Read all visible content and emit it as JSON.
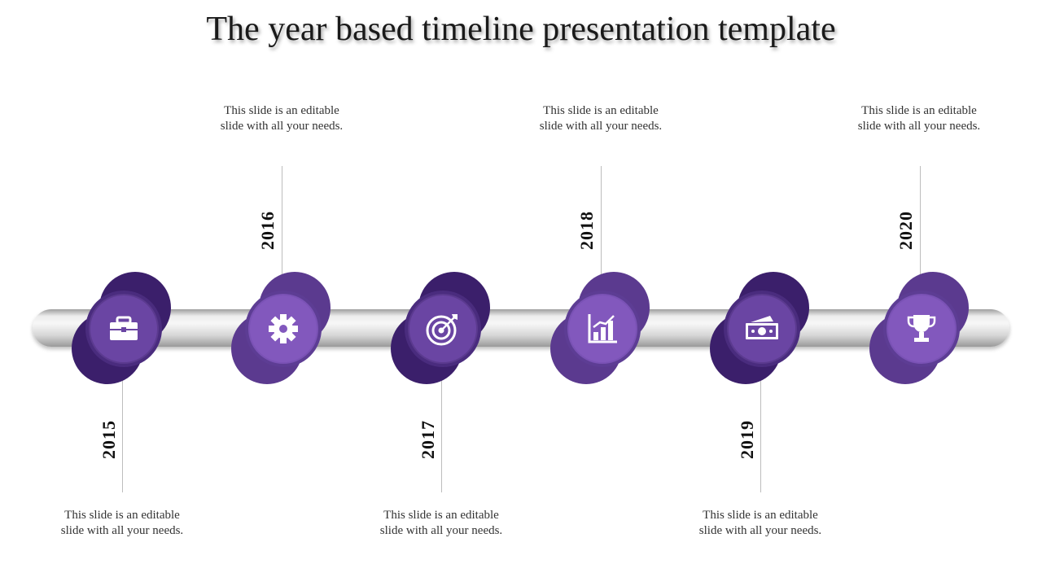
{
  "title": "The year based timeline presentation template",
  "colors": {
    "dark_purple": "#3b1f6b",
    "mid_purple": "#5b3a8f",
    "light_purple": "#7a52b5",
    "icon": "#ffffff"
  },
  "milestones": [
    {
      "year": "2015",
      "text": "This slide is an editable slide with all your needs.",
      "icon": "briefcase-icon"
    },
    {
      "year": "2016",
      "text": "This slide is an editable slide with all your needs.",
      "icon": "gear-icon"
    },
    {
      "year": "2017",
      "text": "This slide is an editable slide with all your needs.",
      "icon": "target-icon"
    },
    {
      "year": "2018",
      "text": "This slide is an editable slide with all your needs.",
      "icon": "bar-chart-icon"
    },
    {
      "year": "2019",
      "text": "This slide is an editable slide with all your needs.",
      "icon": "money-icon"
    },
    {
      "year": "2020",
      "text": "This slide is an editable slide with all your needs.",
      "icon": "trophy-icon"
    }
  ]
}
